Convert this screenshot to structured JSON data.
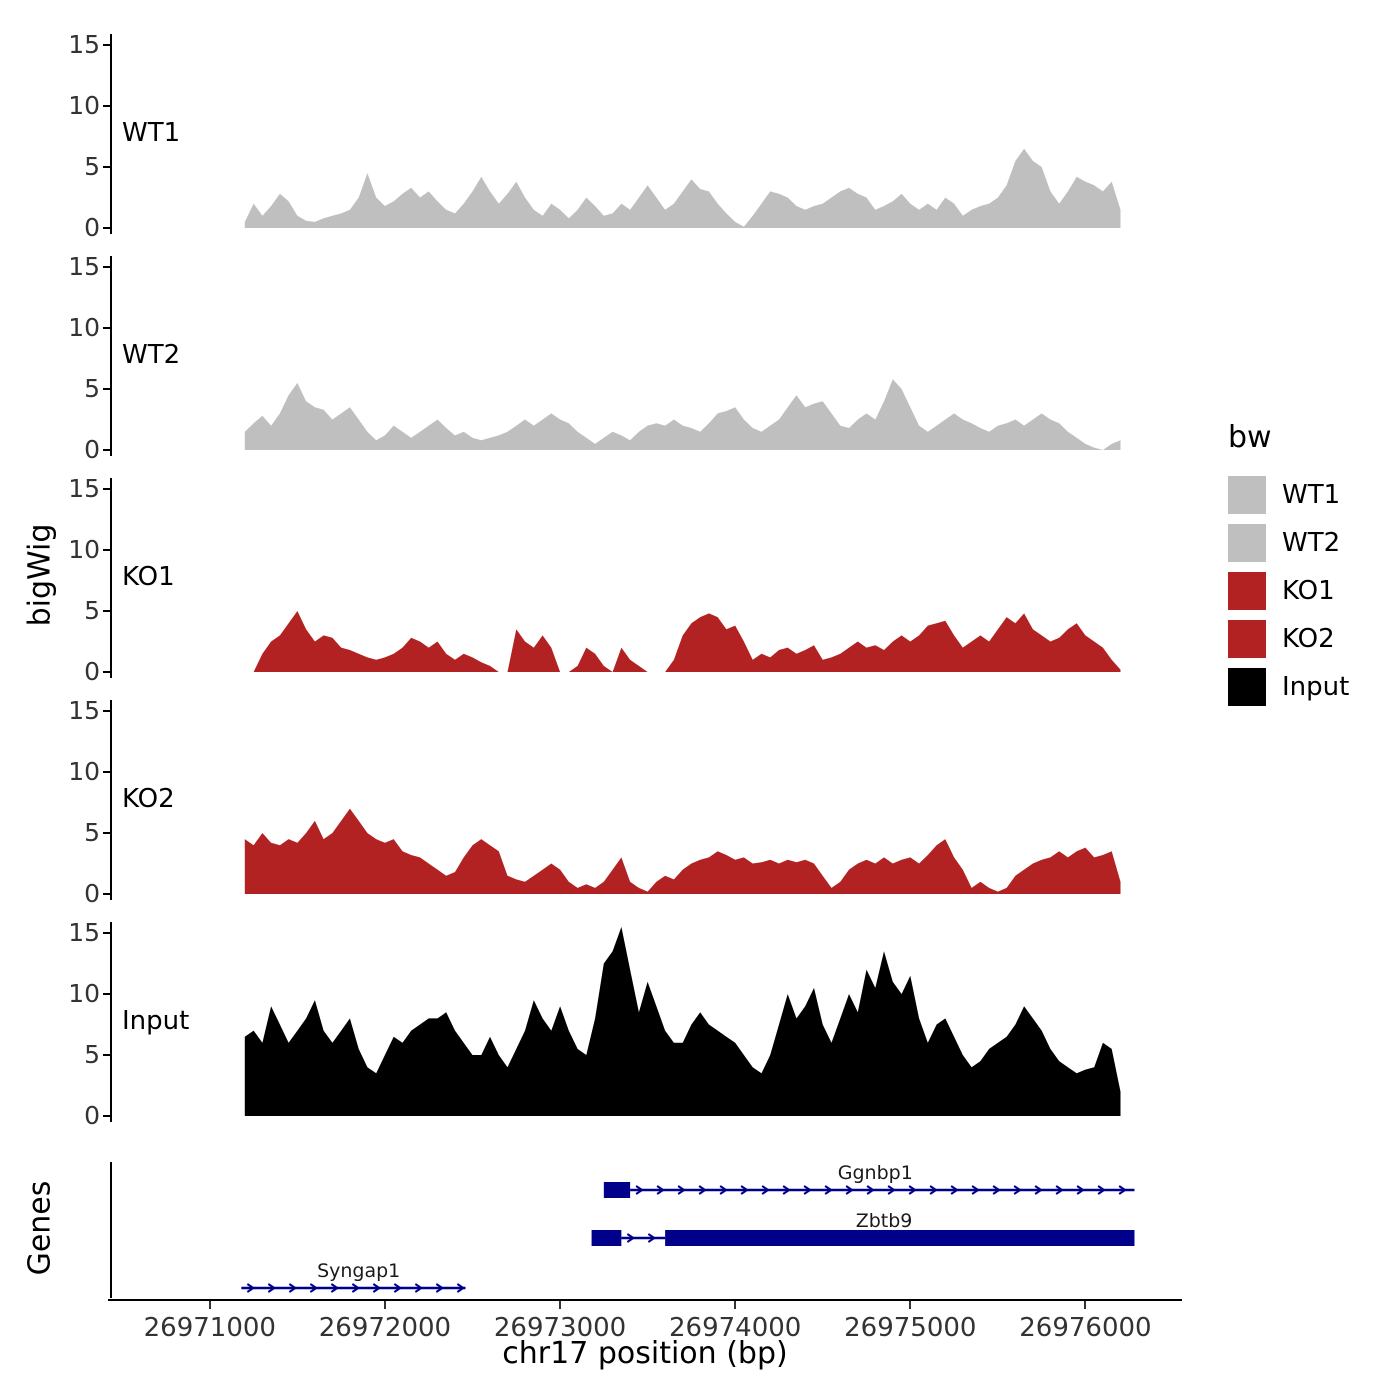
{
  "figure": {
    "y_axis_label": "bigWig",
    "genes_axis_label": "Genes",
    "x_axis_label": "chr17 position (bp)"
  },
  "legend": {
    "title": "bw",
    "entries": [
      {
        "label": "WT1",
        "color": "#BFBFBF"
      },
      {
        "label": "WT2",
        "color": "#BFBFBF"
      },
      {
        "label": "KO1",
        "color": "#B22222"
      },
      {
        "label": "KO2",
        "color": "#B22222"
      },
      {
        "label": "Input",
        "color": "#000000"
      }
    ]
  },
  "chart_data": {
    "type": "area",
    "title": "",
    "xlabel": "chr17 position (bp)",
    "ylabel": "bigWig",
    "x_domain": [
      26970430,
      26976540
    ],
    "x_ticks": [
      26971000,
      26972000,
      26973000,
      26974000,
      26975000,
      26976000
    ],
    "y_ticks": [
      0,
      5,
      10,
      15
    ],
    "y_domain": [
      0,
      16.4
    ],
    "x_start": 26971200,
    "x_step": 50,
    "series": [
      {
        "name": "WT1",
        "color": "#BFBFBF",
        "values": [
          0.5,
          2.0,
          1.0,
          1.8,
          2.8,
          2.2,
          1.0,
          0.6,
          0.5,
          0.8,
          1.0,
          1.2,
          1.5,
          2.5,
          4.5,
          2.5,
          1.8,
          2.2,
          2.8,
          3.3,
          2.5,
          3.0,
          2.2,
          1.5,
          1.2,
          2.0,
          3.0,
          4.2,
          3.0,
          2.0,
          2.8,
          3.8,
          2.5,
          1.5,
          1.0,
          2.0,
          1.5,
          0.8,
          1.5,
          2.5,
          1.8,
          1.0,
          1.2,
          2.0,
          1.5,
          2.5,
          3.5,
          2.5,
          1.5,
          2.0,
          3.0,
          4.0,
          3.2,
          3.0,
          2.0,
          1.2,
          0.5,
          0.1,
          1.0,
          2.0,
          3.0,
          2.8,
          2.5,
          1.8,
          1.5,
          1.8,
          2.0,
          2.5,
          3.0,
          3.3,
          2.8,
          2.5,
          1.5,
          1.8,
          2.2,
          2.8,
          2.0,
          1.5,
          2.0,
          1.5,
          2.5,
          2.0,
          1.0,
          1.5,
          1.8,
          2.0,
          2.5,
          3.5,
          5.5,
          6.5,
          5.5,
          5.0,
          3.0,
          2.0,
          3.0,
          4.2,
          3.8,
          3.5,
          3.0,
          3.8,
          1.5
        ]
      },
      {
        "name": "WT2",
        "color": "#BFBFBF",
        "values": [
          1.5,
          2.2,
          2.8,
          2.0,
          3.0,
          4.5,
          5.5,
          4.0,
          3.5,
          3.3,
          2.5,
          3.0,
          3.5,
          2.5,
          1.5,
          0.8,
          1.2,
          2.0,
          1.5,
          1.0,
          1.5,
          2.0,
          2.5,
          1.8,
          1.2,
          1.5,
          1.0,
          0.8,
          1.0,
          1.2,
          1.5,
          2.0,
          2.5,
          2.0,
          2.5,
          3.0,
          2.5,
          2.2,
          1.5,
          1.0,
          0.5,
          1.0,
          1.5,
          1.2,
          0.8,
          1.5,
          2.0,
          2.2,
          2.0,
          2.5,
          2.0,
          1.8,
          1.5,
          2.2,
          3.0,
          3.2,
          3.5,
          2.5,
          1.8,
          1.5,
          2.0,
          2.5,
          3.5,
          4.5,
          3.5,
          3.8,
          4.0,
          3.0,
          2.0,
          1.8,
          2.5,
          3.0,
          2.5,
          4.0,
          5.8,
          5.0,
          3.5,
          2.0,
          1.5,
          2.0,
          2.5,
          3.0,
          2.5,
          2.2,
          1.8,
          1.5,
          2.0,
          2.2,
          2.5,
          2.0,
          2.5,
          3.0,
          2.5,
          2.2,
          1.5,
          1.0,
          0.5,
          0.2,
          0.0,
          0.5,
          0.8
        ]
      },
      {
        "name": "KO1",
        "color": "#B22222",
        "values": [
          0.0,
          0.0,
          1.5,
          2.5,
          3.0,
          4.0,
          5.0,
          3.5,
          2.5,
          3.0,
          2.8,
          2.0,
          1.8,
          1.5,
          1.2,
          1.0,
          1.2,
          1.5,
          2.0,
          2.8,
          2.5,
          2.0,
          2.5,
          1.5,
          1.0,
          1.5,
          1.2,
          0.8,
          0.5,
          0.0,
          0.0,
          3.5,
          2.5,
          2.0,
          3.0,
          2.0,
          0.0,
          0.0,
          0.5,
          2.0,
          1.5,
          0.5,
          0.0,
          2.0,
          1.0,
          0.5,
          0.0,
          0.0,
          0.0,
          1.0,
          3.0,
          4.0,
          4.5,
          4.8,
          4.5,
          3.5,
          3.8,
          2.5,
          1.0,
          1.5,
          1.2,
          1.8,
          2.0,
          1.5,
          1.8,
          2.2,
          1.0,
          1.2,
          1.5,
          2.0,
          2.5,
          2.0,
          2.2,
          1.8,
          2.5,
          3.0,
          2.5,
          3.0,
          3.8,
          4.0,
          4.2,
          3.0,
          2.0,
          2.5,
          3.0,
          2.5,
          3.5,
          4.5,
          4.0,
          4.8,
          3.5,
          3.0,
          2.5,
          2.8,
          3.5,
          4.0,
          3.0,
          2.5,
          2.0,
          1.0,
          0.2
        ]
      },
      {
        "name": "KO2",
        "color": "#B22222",
        "values": [
          4.5,
          4.0,
          5.0,
          4.2,
          4.0,
          4.5,
          4.2,
          5.0,
          6.0,
          4.5,
          5.0,
          6.0,
          7.0,
          6.0,
          5.0,
          4.5,
          4.2,
          4.5,
          3.5,
          3.2,
          3.0,
          2.5,
          2.0,
          1.5,
          1.8,
          3.0,
          4.0,
          4.5,
          4.0,
          3.5,
          1.5,
          1.2,
          1.0,
          1.5,
          2.0,
          2.5,
          2.0,
          1.0,
          0.5,
          0.8,
          0.5,
          1.0,
          2.0,
          3.0,
          1.0,
          0.5,
          0.2,
          1.0,
          1.5,
          1.2,
          2.0,
          2.5,
          2.8,
          3.0,
          3.5,
          3.2,
          2.8,
          3.0,
          2.5,
          2.6,
          2.8,
          2.5,
          2.8,
          2.6,
          2.8,
          2.5,
          1.5,
          0.5,
          1.0,
          2.0,
          2.5,
          2.8,
          2.5,
          3.0,
          2.5,
          2.8,
          3.0,
          2.5,
          3.2,
          4.0,
          4.5,
          3.0,
          2.0,
          0.5,
          1.0,
          0.5,
          0.2,
          0.5,
          1.5,
          2.0,
          2.5,
          2.8,
          3.0,
          3.5,
          3.0,
          3.5,
          3.8,
          3.0,
          3.2,
          3.5,
          1.0
        ]
      },
      {
        "name": "Input",
        "color": "#000000",
        "values": [
          6.5,
          7.0,
          6.0,
          9.0,
          7.5,
          6.0,
          7.0,
          8.0,
          9.5,
          7.0,
          6.0,
          7.0,
          8.0,
          5.5,
          4.0,
          3.5,
          5.0,
          6.5,
          6.0,
          7.0,
          7.5,
          8.0,
          8.0,
          8.5,
          7.0,
          6.0,
          5.0,
          5.0,
          6.5,
          5.0,
          4.0,
          5.5,
          7.0,
          9.5,
          8.0,
          7.0,
          9.0,
          7.0,
          5.5,
          5.0,
          8.0,
          12.5,
          13.5,
          15.5,
          12.0,
          8.5,
          11.0,
          9.0,
          7.0,
          6.0,
          6.0,
          7.5,
          8.5,
          7.5,
          7.0,
          6.5,
          6.0,
          5.0,
          4.0,
          3.5,
          5.0,
          7.5,
          10.0,
          8.0,
          9.0,
          10.5,
          7.5,
          6.0,
          8.0,
          10.0,
          8.5,
          12.0,
          10.5,
          13.5,
          11.0,
          10.0,
          11.5,
          8.0,
          6.0,
          7.5,
          8.0,
          6.5,
          5.0,
          4.0,
          4.5,
          5.5,
          6.0,
          6.5,
          7.5,
          9.0,
          8.0,
          7.0,
          5.5,
          4.5,
          4.0,
          3.5,
          3.8,
          4.0,
          6.0,
          5.5,
          2.0
        ]
      }
    ],
    "genes": {
      "color": "#00008B",
      "items": [
        {
          "name": "Ggnbp1",
          "strand": "+",
          "start": 26973250,
          "end": 26976280,
          "label_bp": 26974800,
          "exons": [
            {
              "start": 26973250,
              "end": 26973400
            }
          ],
          "lines": [
            {
              "start": 26973400,
              "end": 26976280
            }
          ]
        },
        {
          "name": "Zbtb9",
          "strand": "+",
          "start": 26973180,
          "end": 26976280,
          "label_bp": 26974850,
          "exons": [
            {
              "start": 26973180,
              "end": 26973350
            },
            {
              "start": 26973600,
              "end": 26976280
            }
          ],
          "lines": [
            {
              "start": 26973350,
              "end": 26973600
            }
          ]
        },
        {
          "name": "Syngap1",
          "strand": "+",
          "start": 26971180,
          "end": 26972460,
          "label_bp": 26971850,
          "exons": [],
          "lines": [
            {
              "start": 26971180,
              "end": 26972460
            }
          ]
        }
      ]
    }
  }
}
